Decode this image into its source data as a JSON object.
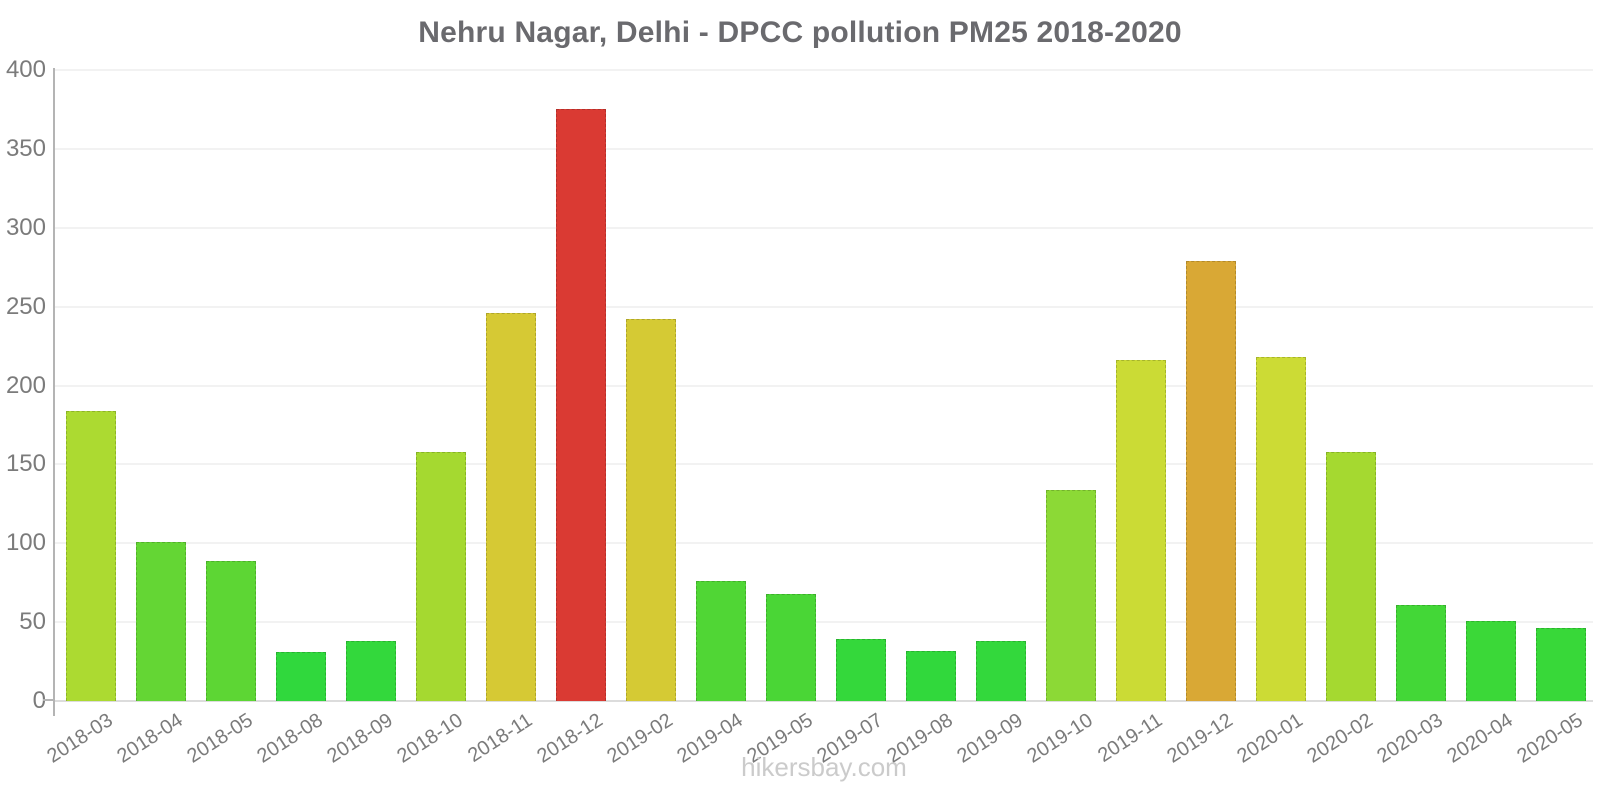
{
  "title": "Nehru Nagar, Delhi - DPCC pollution PM25 2018-2020",
  "footer": "hikersbay.com",
  "chart_data": {
    "type": "bar",
    "title": "Nehru Nagar, Delhi - DPCC pollution PM25 2018-2020",
    "categories": [
      "2018-03",
      "2018-04",
      "2018-05",
      "2018-08",
      "2018-09",
      "2018-10",
      "2018-11",
      "2018-12",
      "2019-02",
      "2019-04",
      "2019-05",
      "2019-07",
      "2019-08",
      "2019-09",
      "2019-10",
      "2019-11",
      "2019-12",
      "2020-01",
      "2020-02",
      "2020-03",
      "2020-04",
      "2020-05"
    ],
    "values": [
      184,
      101,
      89,
      31,
      38,
      158,
      246,
      375,
      242,
      76,
      68,
      39,
      32,
      38,
      134,
      216,
      279,
      218,
      158,
      61,
      51,
      46
    ],
    "bar_colors": [
      "#ACDA31",
      "#64D634",
      "#5DD634",
      "#30D83D",
      "#33D83C",
      "#A5D930",
      "#D6C934",
      "#DA3A33",
      "#D5CA34",
      "#50D635",
      "#4AD636",
      "#34D83B",
      "#31D83C",
      "#33D83C",
      "#8CD936",
      "#CBDB35",
      "#D9A835",
      "#CCDB35",
      "#A5D930",
      "#43D737",
      "#3BD838",
      "#38D839"
    ],
    "xlabel": "",
    "ylabel": "",
    "ylim": [
      0,
      400
    ],
    "yticks": [
      0,
      50,
      100,
      150,
      200,
      250,
      300,
      350,
      400
    ],
    "grid": true,
    "legend": false,
    "watermark": "hikersbay.com"
  },
  "colors": {
    "background": "#ffffff",
    "title_text": "#6a6a6e",
    "tick_label": "#7b7b7b",
    "y_axis_line": "#b4b4b4",
    "x_axis_line": "#dcdcdc",
    "gridline": "#f2f2f2",
    "footer_text": "#cbcbcb"
  }
}
